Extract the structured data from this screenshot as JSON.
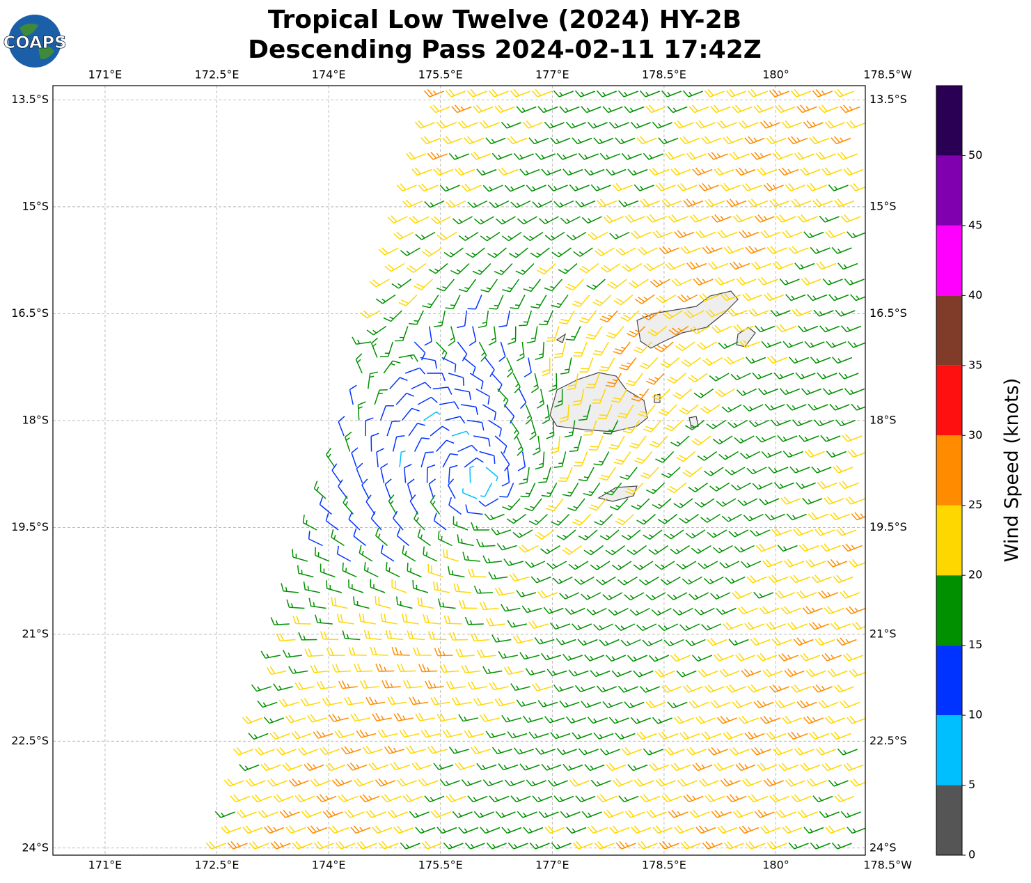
{
  "logo": "COAPS",
  "chart_data": {
    "type": "map",
    "title": [
      "Tropical Low Twelve (2024) HY-2B",
      "Descending Pass 2024-02-11 17:42Z"
    ],
    "xlim": [
      170.3,
      181.2
    ],
    "ylim": [
      -24.1,
      -13.3
    ],
    "xticks": [
      {
        "value": 171,
        "label": "171°E"
      },
      {
        "value": 172.5,
        "label": "172.5°E"
      },
      {
        "value": 174,
        "label": "174°E"
      },
      {
        "value": 175.5,
        "label": "175.5°E"
      },
      {
        "value": 177,
        "label": "177°E"
      },
      {
        "value": 178.5,
        "label": "178.5°E"
      },
      {
        "value": 180,
        "label": "180°"
      },
      {
        "value": 181.5,
        "label": "178.5°W"
      }
    ],
    "yticks": [
      {
        "value": -13.5,
        "label": "13.5°S"
      },
      {
        "value": -15,
        "label": "15°S"
      },
      {
        "value": -16.5,
        "label": "16.5°S"
      },
      {
        "value": -18,
        "label": "18°S"
      },
      {
        "value": -19.5,
        "label": "19.5°S"
      },
      {
        "value": -21,
        "label": "21°S"
      },
      {
        "value": -22.5,
        "label": "22.5°S"
      },
      {
        "value": -24,
        "label": "24°S"
      }
    ],
    "grid": true,
    "colorbar": {
      "label": "Wind Speed (knots)",
      "bounds": [
        0,
        5,
        10,
        15,
        20,
        25,
        30,
        35,
        40,
        45,
        50,
        55
      ],
      "colors": [
        "#555555",
        "#00bfff",
        "#0033ff",
        "#009000",
        "#ffd700",
        "#ff8c00",
        "#ff1010",
        "#803c28",
        "#ff00ff",
        "#8000b0",
        "#2a0055"
      ],
      "ticks": [
        0,
        5,
        10,
        15,
        20,
        25,
        30,
        35,
        40,
        45,
        50
      ]
    }
  }
}
